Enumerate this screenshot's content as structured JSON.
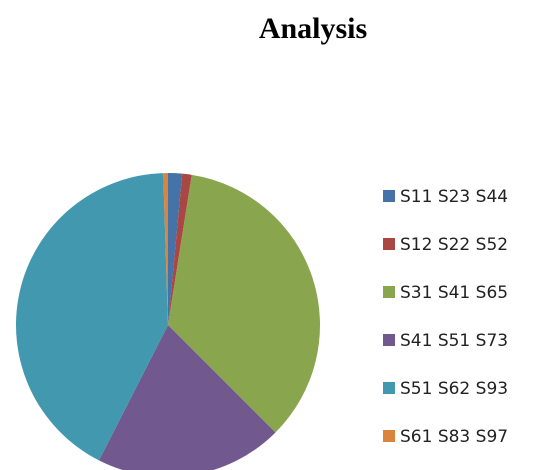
{
  "chart_data": {
    "type": "pie",
    "title": "Analysis",
    "categories": [
      "S11 S23 S44",
      "S12 S22 S52",
      "S31 S41 S65",
      "S41 S51 S73",
      "S51 S62 S93",
      "S61 S83 S97"
    ],
    "values": [
      1.5,
      1,
      35,
      20,
      42,
      0.5
    ],
    "colors": [
      "#4572a7",
      "#aa4643",
      "#89a54e",
      "#71588f",
      "#4198af",
      "#db843d"
    ],
    "legend": "right"
  }
}
